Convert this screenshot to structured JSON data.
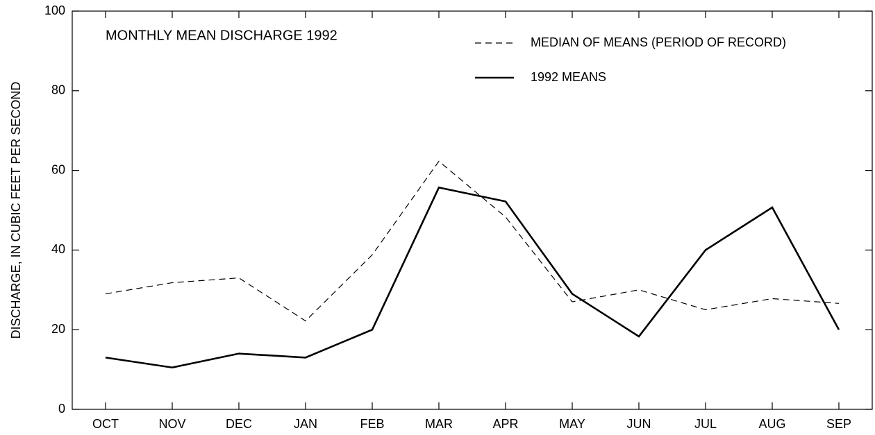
{
  "chart_data": {
    "type": "line",
    "title": "MONTHLY MEAN DISCHARGE  1992",
    "y_label": "DISCHARGE, IN CUBIC FEET PER SECOND",
    "categories": [
      "OCT",
      "NOV",
      "DEC",
      "JAN",
      "FEB",
      "MAR",
      "APR",
      "MAY",
      "JUN",
      "JUL",
      "AUG",
      "SEP"
    ],
    "series": [
      {
        "name": "MEDIAN OF MEANS (PERIOD OF RECORD)",
        "color": "#000000",
        "dash": true,
        "values": [
          29,
          31.8,
          33,
          22.2,
          38.8,
          62.3,
          48.3,
          27,
          30,
          25,
          27.8,
          26.6
        ]
      },
      {
        "name": "1992 MEANS",
        "color": "#000000",
        "dash": false,
        "values": [
          13,
          10.5,
          14,
          13,
          20,
          55.7,
          52.2,
          29,
          18.3,
          40,
          50.7,
          20
        ]
      }
    ],
    "ylim": [
      0,
      100
    ],
    "yticks": [
      0,
      20,
      40,
      60,
      80,
      100
    ],
    "grid": false,
    "legend": "top-right"
  }
}
